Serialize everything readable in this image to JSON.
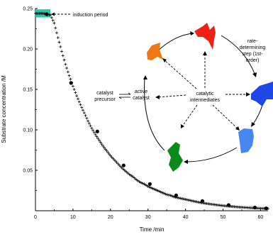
{
  "chart_data": {
    "type": "scatter",
    "xlabel": "Time /min",
    "ylabel": "Substrate concentration /M",
    "xlim": [
      0,
      62
    ],
    "ylim": [
      0,
      0.25
    ],
    "x_ticks": [
      "0",
      "10",
      "20",
      "30",
      "40",
      "50",
      "60"
    ],
    "y_ticks": [
      "0.05",
      "0.10",
      "0.15",
      "0.20",
      "0.25"
    ],
    "grid": false,
    "series": [
      {
        "marker": "plus",
        "x": [
          0,
          1,
          2,
          3,
          4,
          5,
          6,
          7,
          8,
          9,
          10,
          11,
          12,
          13,
          14,
          15,
          16,
          17,
          18,
          19,
          20,
          21,
          22,
          23,
          24,
          25,
          26,
          27,
          28,
          29,
          30,
          31,
          32,
          33,
          34,
          35,
          36,
          37,
          38,
          39,
          40,
          41,
          42,
          43,
          44,
          45,
          46,
          47,
          48,
          49,
          50,
          51,
          52,
          53,
          54,
          55,
          56,
          57,
          58,
          59,
          60,
          61,
          62
        ],
        "values": [
          0.244,
          0.244,
          0.244,
          0.243,
          0.242,
          0.232,
          0.214,
          0.197,
          0.181,
          0.167,
          0.154,
          0.142,
          0.131,
          0.121,
          0.111,
          0.102,
          0.094,
          0.087,
          0.08,
          0.074,
          0.068,
          0.063,
          0.058,
          0.053,
          0.049,
          0.045,
          0.042,
          0.038,
          0.035,
          0.033,
          0.03,
          0.028,
          0.026,
          0.024,
          0.022,
          0.02,
          0.019,
          0.017,
          0.016,
          0.015,
          0.014,
          0.013,
          0.012,
          0.011,
          0.01,
          0.0093,
          0.0086,
          0.008,
          0.0074,
          0.0068,
          0.0063,
          0.0058,
          0.0054,
          0.005,
          0.0046,
          0.0043,
          0.004,
          0.0037,
          0.0034,
          0.0032,
          0.003,
          0.0028,
          0.0026
        ]
      },
      {
        "marker": "filled-circle",
        "x": [
          3,
          9.5,
          16.5,
          23.5,
          30.5,
          37.5,
          44.5,
          51.5,
          58.5,
          61.5
        ],
        "values": [
          0.243,
          0.158,
          0.098,
          0.056,
          0.033,
          0.019,
          0.012,
          0.007,
          0.004,
          0.003
        ]
      }
    ],
    "annotations": {
      "induction": "induction period",
      "rate": [
        "rate-",
        "determining",
        "step (1st-",
        "order)"
      ],
      "precursor": [
        "catalyst",
        "precursor"
      ],
      "active": [
        "active",
        "catalyst"
      ],
      "intermediates": [
        "catalytic",
        "intermediates"
      ]
    },
    "colors": {
      "induction_box": "#2ec4a8",
      "orange": "#f07814",
      "red": "#ee2214",
      "blue": "#1f47e6",
      "light_blue": "#4a86ef",
      "green": "#0a8a18"
    }
  }
}
